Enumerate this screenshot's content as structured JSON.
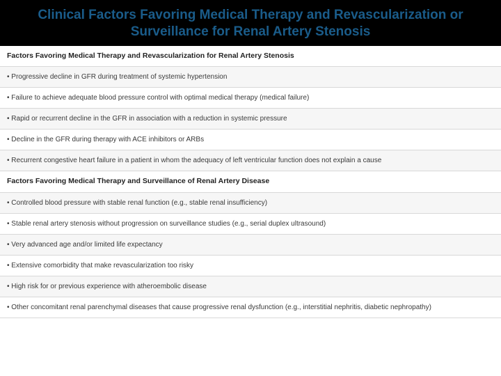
{
  "title": {
    "text": "Clinical Factors Favoring Medical Therapy and Revascularization or Surveillance for Renal Artery Stenosis",
    "color": "#1a5c8a"
  },
  "sections": [
    {
      "header": "Factors Favoring Medical Therapy and Revascularization for Renal Artery Stenosis",
      "items": [
        "• Progressive decline in GFR during treatment of systemic hypertension",
        "• Failure to achieve adequate blood pressure control with optimal medical therapy (medical failure)",
        "• Rapid or recurrent decline in the GFR in association with a reduction in systemic pressure",
        "• Decline in the GFR during therapy with ACE inhibitors or ARBs",
        "• Recurrent congestive heart failure in a patient in whom the adequacy of left ventricular function does not explain a cause"
      ]
    },
    {
      "header": "Factors Favoring Medical Therapy and Surveillance of Renal Artery Disease",
      "items": [
        "• Controlled blood pressure with stable renal function (e.g., stable renal insufficiency)",
        "• Stable renal artery stenosis without progression on surveillance studies (e.g., serial duplex ultrasound)",
        "• Very advanced age and/or limited life expectancy",
        "• Extensive comorbidity that make revascularization too risky",
        "• High risk for or previous experience with atheroembolic disease",
        "• Other concomitant renal parenchymal diseases that cause progressive renal dysfunction (e.g., interstitial nephritis, diabetic nephropathy)"
      ]
    }
  ],
  "styling": {
    "title_bg": "#000000",
    "title_color": "#1a5c8a",
    "row_border": "#d8d8d8",
    "row_alt_bg": "#f6f6f6",
    "text_color": "#3a3a3a",
    "header_text_color": "#222222",
    "title_fontsize": 19,
    "row_fontsize": 10
  }
}
